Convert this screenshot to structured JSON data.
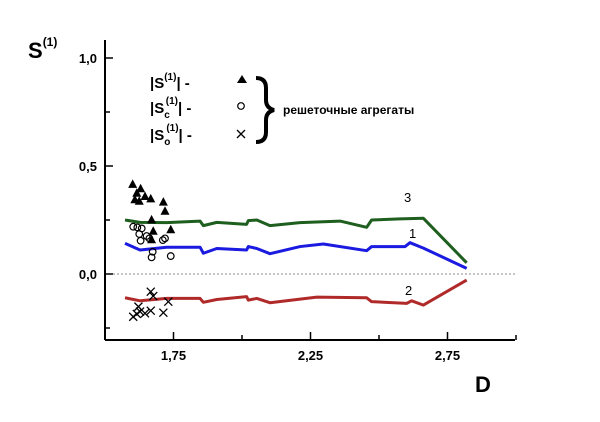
{
  "chart_data": {
    "type": "line",
    "title": "",
    "ylabel": {
      "base": "S",
      "sup": "(1)"
    },
    "xlabel": "D",
    "xlim": [
      1.5,
      3.0
    ],
    "ylim": [
      -0.3,
      1.1
    ],
    "x_ticks": [
      {
        "v": 1.75,
        "label": "1,75"
      },
      {
        "v": 2.25,
        "label": "2,25"
      },
      {
        "v": 2.75,
        "label": "2,75"
      }
    ],
    "x_minor_ticks": [
      2.0,
      2.5,
      3.0
    ],
    "y_ticks": [
      {
        "v": 1.0,
        "label": "1,0"
      },
      {
        "v": 0.5,
        "label": "0,5"
      },
      {
        "v": 0.0,
        "label": "0,0"
      }
    ],
    "y_minor_ticks": [
      0.75,
      0.25,
      -0.25
    ],
    "reference_line": 0.0,
    "series": [
      {
        "name": "3",
        "color": "#1e5e1e",
        "type": "line",
        "x": [
          1.573,
          1.628,
          1.725,
          1.847,
          1.859,
          1.908,
          2.017,
          2.023,
          2.054,
          2.102,
          2.212,
          2.358,
          2.455,
          2.473,
          2.577,
          2.662,
          2.82
        ],
        "y": [
          0.25,
          0.239,
          0.238,
          0.245,
          0.224,
          0.239,
          0.23,
          0.247,
          0.25,
          0.224,
          0.238,
          0.245,
          0.216,
          0.25,
          0.255,
          0.258,
          0.052
        ]
      },
      {
        "name": "1",
        "color": "#1a1ae0",
        "type": "line",
        "x": [
          1.573,
          1.628,
          1.725,
          1.847,
          1.859,
          1.908,
          2.017,
          2.023,
          2.054,
          2.102,
          2.212,
          2.297,
          2.455,
          2.473,
          2.595,
          2.613,
          2.662,
          2.82
        ],
        "y": [
          0.142,
          0.111,
          0.124,
          0.124,
          0.096,
          0.118,
          0.111,
          0.127,
          0.118,
          0.094,
          0.127,
          0.139,
          0.108,
          0.127,
          0.127,
          0.145,
          0.12,
          0.026
        ]
      },
      {
        "name": "2",
        "color": "#b02a2a",
        "type": "line",
        "x": [
          1.573,
          1.628,
          1.725,
          1.847,
          1.859,
          1.908,
          2.017,
          2.023,
          2.054,
          2.102,
          2.273,
          2.455,
          2.473,
          2.601,
          2.619,
          2.662,
          2.82
        ],
        "y": [
          -0.11,
          -0.124,
          -0.113,
          -0.113,
          -0.131,
          -0.118,
          -0.105,
          -0.121,
          -0.113,
          -0.133,
          -0.107,
          -0.11,
          -0.128,
          -0.136,
          -0.124,
          -0.144,
          -0.028
        ]
      },
      {
        "name": "|S(1)|",
        "marker": "triangle",
        "type": "scatter",
        "x": [
          1.601,
          1.63,
          1.616,
          1.646,
          1.625,
          1.667,
          1.713,
          1.719,
          1.67,
          1.74,
          1.676,
          1.67,
          1.609
        ],
        "y": [
          0.417,
          0.397,
          0.376,
          0.361,
          0.339,
          0.35,
          0.335,
          0.293,
          0.253,
          0.207,
          0.2,
          0.161,
          0.346
        ]
      },
      {
        "name": "|Sc(1)|",
        "marker": "circle",
        "type": "scatter",
        "x": [
          1.603,
          1.618,
          1.634,
          1.625,
          1.652,
          1.63,
          1.662,
          1.711,
          1.719,
          1.674,
          1.67,
          1.74
        ],
        "y": [
          0.219,
          0.216,
          0.211,
          0.185,
          0.176,
          0.154,
          0.165,
          0.157,
          0.165,
          0.103,
          0.077,
          0.083
        ]
      },
      {
        "name": "|So(1)|",
        "marker": "cross",
        "type": "scatter",
        "x": [
          1.667,
          1.676,
          1.603,
          1.622,
          1.628,
          1.646,
          1.667,
          1.713,
          1.731,
          1.616
        ],
        "y": [
          -0.082,
          -0.102,
          -0.198,
          -0.151,
          -0.174,
          -0.182,
          -0.17,
          -0.179,
          -0.128,
          -0.185
        ]
      }
    ],
    "legend": {
      "placement": "top-center",
      "entries": [
        {
          "base": "|S",
          "sub": "",
          "sup": "(1)",
          "tail": "| -",
          "marker": "triangle"
        },
        {
          "base": "|S",
          "sub": "c",
          "sup": "(1)",
          "tail": "| -",
          "marker": "circle"
        },
        {
          "base": "|S",
          "sub": "o",
          "sup": "(1)",
          "tail": "| -",
          "marker": "cross"
        }
      ],
      "group_label": "решеточные агрегаты"
    }
  }
}
